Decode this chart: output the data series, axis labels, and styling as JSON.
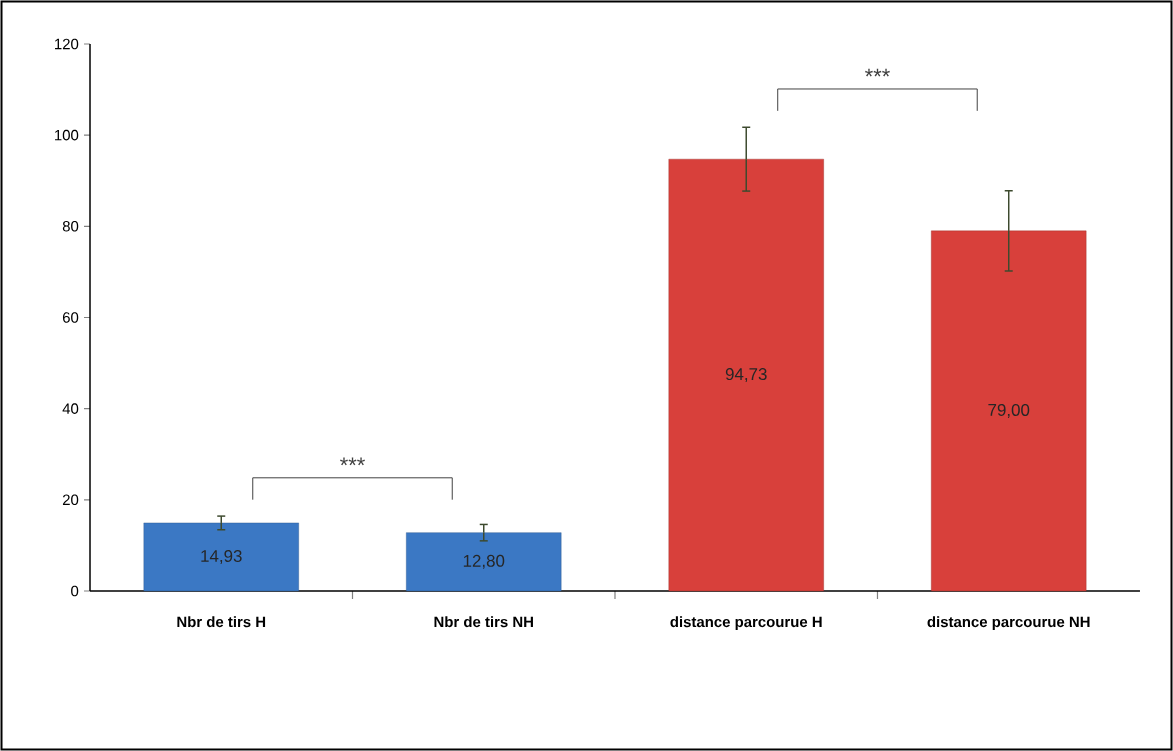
{
  "chart_data": {
    "type": "bar",
    "categories": [
      "Nbr de tirs H",
      "Nbr de tirs NH",
      "distance parcourue  H",
      "distance parcourue  NH"
    ],
    "values": [
      14.93,
      12.8,
      94.73,
      79.0
    ],
    "colors": [
      "#3b78c4",
      "#3b78c4",
      "#d8403b",
      "#d8403b"
    ],
    "errors": [
      1.5,
      1.8,
      7,
      8.8
    ],
    "value_labels": [
      "14,93",
      "12,80",
      "94,73",
      "79,00"
    ],
    "ylim": [
      0,
      120
    ],
    "yticks": [
      0,
      20,
      40,
      60,
      80,
      100,
      120
    ],
    "annotations": [
      "***",
      "***"
    ],
    "grid": false
  }
}
